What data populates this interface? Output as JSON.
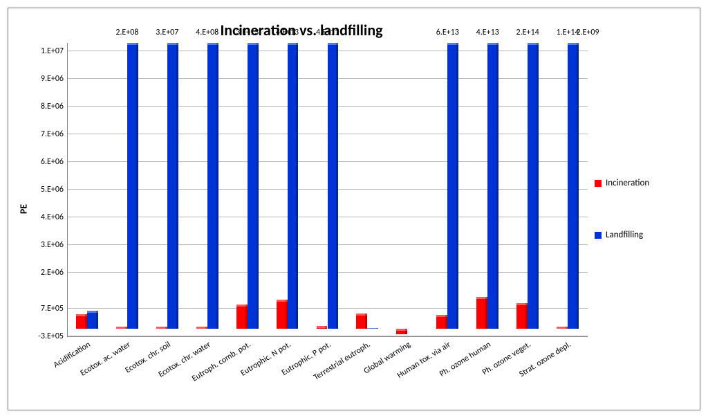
{
  "chart": {
    "title": "Incineration vs. landfilling",
    "title_fontsize": 22,
    "title_fontweight": "bold",
    "type": "bar",
    "background_color": "#ffffff",
    "grid_color": "#b8b8b8",
    "axis_color": "#888888",
    "plot_border": true,
    "ylabel": "PE",
    "ylabel_fontsize": 14,
    "ylabel_fontweight": "bold",
    "y_axis": {
      "min": -300000,
      "max": 10300000,
      "ticks": [
        {
          "v": -300000,
          "label": "-3.E+05"
        },
        {
          "v": 700000,
          "label": "7.E+05"
        },
        {
          "v": 2000000,
          "label": "2.E+06"
        },
        {
          "v": 3000000,
          "label": "3.E+06"
        },
        {
          "v": 4000000,
          "label": "4.E+06"
        },
        {
          "v": 5000000,
          "label": "5.E+06"
        },
        {
          "v": 6000000,
          "label": "6.E+06"
        },
        {
          "v": 7000000,
          "label": "7.E+06"
        },
        {
          "v": 8000000,
          "label": "8.E+06"
        },
        {
          "v": 9000000,
          "label": "9.E+06"
        },
        {
          "v": 10000000,
          "label": "1.E+07"
        }
      ]
    },
    "categories": [
      "Acidification",
      "Ecotox. ac. water",
      "Ecotox. chr. soil",
      "Ecotox. chr. water",
      "Eutroph. comb. pot.",
      "Eutrophic. N pot.",
      "Eutrophic. P pot.",
      "Terrestrial eutroph.",
      "Global warming",
      "Human tox. via air",
      "Ph. ozone human",
      "Ph. ozone veget.",
      "Strat. ozone depl."
    ],
    "series": [
      {
        "name": "Incineration",
        "color": "#ff0000",
        "values": [
          520000,
          80000,
          80000,
          80000,
          870000,
          1050000,
          100000,
          560000,
          -200000,
          500000,
          1150000,
          920000,
          70000
        ]
      },
      {
        "name": "Landfilling",
        "color": "#0033d6",
        "values": [
          650000,
          10300000,
          10300000,
          10300000,
          10300000,
          10300000,
          10300000,
          30000,
          null,
          10300000,
          10300000,
          10300000,
          10300000
        ]
      }
    ],
    "data_annotations_top": [
      null,
      "2.E+08",
      "3.E+07",
      "4.E+08",
      "3.E+13",
      "4.E+13",
      "4.E+11",
      null,
      null,
      "6.E+13",
      "4.E+13",
      "2.E+14",
      "1.E+14"
    ],
    "data_annotation_extra_rightmost": "2.E+09",
    "x_label_rotation_deg": -32,
    "x_label_fontsize": 12,
    "y_tick_fontsize": 12,
    "bar_group_width": 0.55,
    "bar_inner_ratio": 0.5,
    "legend": {
      "position": "right",
      "items": [
        {
          "label": "Incineration",
          "color": "#ff0000"
        },
        {
          "label": "Landfilling",
          "color": "#0033d6"
        }
      ],
      "fontsize": 13
    }
  }
}
